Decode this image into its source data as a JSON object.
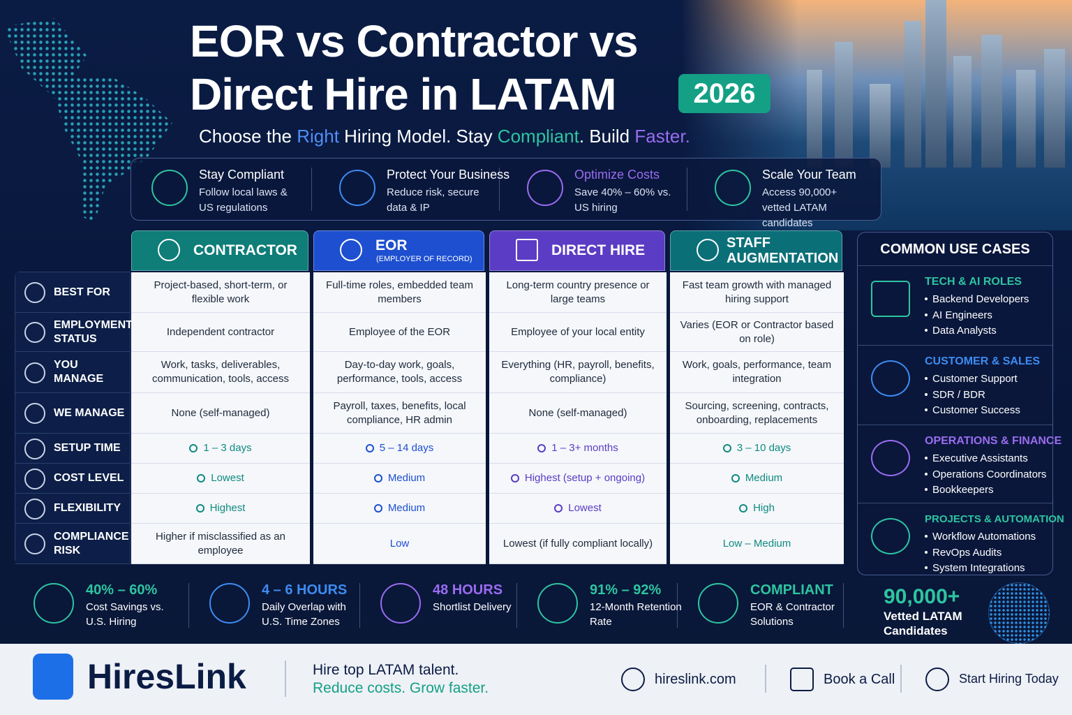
{
  "header": {
    "title_lines": [
      "EOR vs Contractor vs",
      "Direct Hire in LATAM"
    ],
    "year": "2026",
    "tagline": [
      {
        "text": "Choose the ",
        "color": "#ffffff"
      },
      {
        "text": "Right",
        "color": "#4f8df7"
      },
      {
        "text": " Hiring Model. Stay ",
        "color": "#ffffff"
      },
      {
        "text": "Compliant",
        "color": "#2ec4a0"
      },
      {
        "text": ". Build ",
        "color": "#ffffff"
      },
      {
        "text": "Faster.",
        "color": "#9a6cf0"
      }
    ]
  },
  "benefits": [
    {
      "title": "Stay Compliant",
      "text": "Follow local laws & US regulations",
      "color": "#2ec4a0"
    },
    {
      "title": "Protect Your Business",
      "text": "Reduce risk, secure data & IP",
      "color": "#3d8cf0"
    },
    {
      "title": "Optimize Costs",
      "text": "Save 40% – 60% vs. US hiring",
      "color": "#9a6cf0"
    },
    {
      "title": "Scale Your Team",
      "text": "Access 90,000+ vetted LATAM candidates",
      "color": "#2ec4a0"
    }
  ],
  "table": {
    "columns": [
      {
        "name": "CONTRACTOR",
        "color": "#0f7d78"
      },
      {
        "name": "EOR",
        "note": "(EMPLOYER OF RECORD)",
        "color": "#1d4fd0"
      },
      {
        "name": "DIRECT HIRE",
        "color": "#5b3cc4"
      },
      {
        "name": "STAFF AUGMENTATION",
        "color": "#0b6f78"
      }
    ],
    "rows": [
      {
        "label": "BEST FOR",
        "cells": [
          "Project-based, short-term, or flexible work",
          "Full-time roles, embedded team members",
          "Long-term country presence or large teams",
          "Fast team growth with managed hiring support"
        ]
      },
      {
        "label": "EMPLOYMENT STATUS",
        "cells": [
          "Independent contractor",
          "Employee of the EOR",
          "Employee of your local entity",
          "Varies (EOR or Contractor based on role)"
        ]
      },
      {
        "label": "YOU MANAGE",
        "cells": [
          "Work, tasks, deliverables, communication, tools, access",
          "Day-to-day work, goals, performance, tools, access",
          "Everything (HR, payroll, benefits, compliance)",
          "Work, goals, performance, team integration"
        ]
      },
      {
        "label": "WE MANAGE",
        "cells": [
          "None (self-managed)",
          "Payroll, taxes, benefits, local compliance, HR admin",
          "None (self-managed)",
          "Sourcing, screening, contracts, onboarding, replacements"
        ]
      },
      {
        "label": "SETUP TIME",
        "cells": [
          "1 – 3 days",
          "5 – 14 days",
          "1 – 3+ months",
          "3 – 10 days"
        ]
      },
      {
        "label": "COST LEVEL",
        "cells": [
          "Lowest",
          "Medium",
          "Highest (setup + ongoing)",
          "Medium"
        ]
      },
      {
        "label": "FLEXIBILITY",
        "cells": [
          "Highest",
          "Medium",
          "Lowest",
          "High"
        ]
      },
      {
        "label": "COMPLIANCE RISK",
        "cells": [
          "Higher if misclassified as an employee",
          "Low",
          "Lowest (if fully compliant locally)",
          "Low – Medium"
        ]
      }
    ]
  },
  "use_cases": {
    "title": "COMMON USE CASES",
    "groups": [
      {
        "title": "TECH & AI ROLES",
        "color": "#2ec4a0",
        "items": [
          "Backend Developers",
          "AI Engineers",
          "Data Analysts"
        ]
      },
      {
        "title": "CUSTOMER & SALES",
        "color": "#3d8cf0",
        "items": [
          "Customer Support",
          "SDR / BDR",
          "Customer Success"
        ]
      },
      {
        "title": "OPERATIONS & FINANCE",
        "color": "#9a6cf0",
        "items": [
          "Executive Assistants",
          "Operations Coordinators",
          "Bookkeepers"
        ]
      },
      {
        "title": "PROJECTS & AUTOMATION",
        "color": "#2ec4a0",
        "items": [
          "Workflow Automations",
          "RevOps Audits",
          "System Integrations"
        ]
      }
    ]
  },
  "stats": [
    {
      "value": "40% – 60%",
      "label": "Cost Savings vs. U.S. Hiring",
      "color": "#2ec4a0"
    },
    {
      "value": "4 – 6 HOURS",
      "label": "Daily Overlap with U.S. Time Zones",
      "color": "#3d8cf0"
    },
    {
      "value": "48 HOURS",
      "label": "Shortlist Delivery",
      "color": "#9a6cf0"
    },
    {
      "value": "91% – 92%",
      "label": "12-Month Retention Rate",
      "color": "#2ec4a0"
    },
    {
      "value": "COMPLIANT",
      "label": "EOR & Contractor Solutions",
      "color": "#2ec4a0"
    },
    {
      "value": "90,000+",
      "label": "Vetted LATAM Candidates",
      "color": "#2ec4a0"
    }
  ],
  "footer": {
    "brand": "HiresLink",
    "slogan": [
      "Hire top LATAM talent.",
      "Reduce costs. Grow faster."
    ],
    "links": [
      "hireslink.com",
      "Book a Call",
      "Start Hiring Today"
    ]
  }
}
